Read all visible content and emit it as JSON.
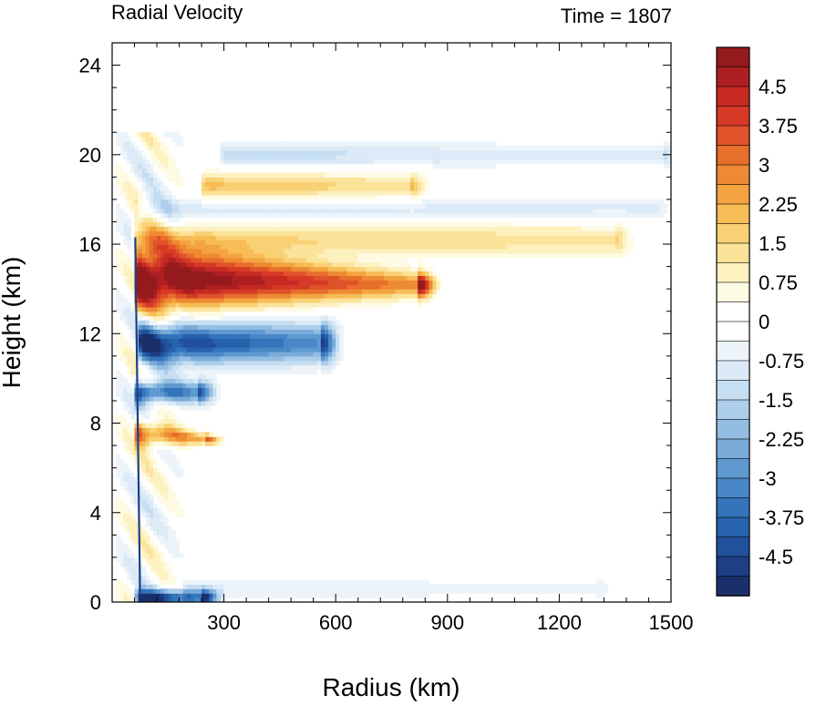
{
  "chart_data": {
    "type": "heatmap",
    "title_left": "Radial Velocity",
    "title_right": "Time = 1807",
    "xlabel": "Radius (km)",
    "ylabel": "Height (km)",
    "xlim": [
      0,
      1500
    ],
    "ylim": [
      0,
      25
    ],
    "x_ticks": [
      300,
      600,
      900,
      1200,
      1500
    ],
    "y_ticks": [
      0,
      4,
      8,
      12,
      16,
      20,
      24
    ],
    "colorbar": {
      "range": [
        -5.25,
        5.25
      ],
      "step": 0.375,
      "tick_labels": [
        "4.5",
        "3.75",
        "3",
        "2.25",
        "1.5",
        "0.75",
        "0",
        "-0.75",
        "-1.5",
        "-2.25",
        "-3",
        "-3.75",
        "-4.5"
      ],
      "tick_values": [
        4.5,
        3.75,
        3,
        2.25,
        1.5,
        0.75,
        0,
        -0.75,
        -1.5,
        -2.25,
        -3,
        -3.75,
        -4.5
      ]
    },
    "features": [
      {
        "r0": 70,
        "r1": 820,
        "z": 14.5,
        "dz": 1.4,
        "v": 6.0,
        "taper": 0.55
      },
      {
        "r0": 60,
        "r1": 1350,
        "z": 16.2,
        "dz": 0.7,
        "v": 1.6,
        "taper": 0.2
      },
      {
        "r0": 80,
        "r1": 560,
        "z": 11.6,
        "dz": 0.9,
        "v": -5.0,
        "taper": 0.4
      },
      {
        "r0": 80,
        "r1": 1450,
        "z": 17.6,
        "dz": 0.5,
        "v": -1.0,
        "taper": 0.2
      },
      {
        "r0": 250,
        "r1": 800,
        "z": 18.6,
        "dz": 0.6,
        "v": 2.0,
        "taper": 0.35
      },
      {
        "r0": 300,
        "r1": 1480,
        "z": 20.0,
        "dz": 0.5,
        "v": -1.3,
        "taper": 0.35
      },
      {
        "r0": 70,
        "r1": 230,
        "z": 9.4,
        "dz": 0.5,
        "v": -4.5,
        "taper": 0.4
      },
      {
        "r0": 70,
        "r1": 250,
        "z": 7.6,
        "dz": 0.6,
        "v": 3.6,
        "taper": 0.4
      },
      {
        "r0": 75,
        "r1": 240,
        "z": 0.2,
        "dz": 0.35,
        "v": -5.5,
        "taper": 0.4
      },
      {
        "r0": 200,
        "r1": 1300,
        "z": 0.6,
        "dz": 0.4,
        "v": -0.8,
        "taper": 0.3
      }
    ]
  }
}
